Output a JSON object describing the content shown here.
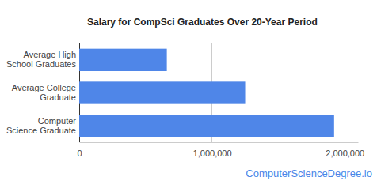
{
  "chart_data": {
    "type": "bar",
    "orientation": "horizontal",
    "title": "Salary for CompSci Graduates Over 20-Year Period",
    "categories": [
      "Average High School Graduates",
      "Average College Graduate",
      "Computer Science Graduate"
    ],
    "values": [
      660000,
      1250000,
      1920000
    ],
    "color": "#4f86e8",
    "xlim": [
      0,
      2100000
    ],
    "xticks": [
      0,
      {
        "value": 1000000,
        "label": "1,000,000"
      },
      {
        "value": 2000000,
        "label": "2,000,000"
      }
    ],
    "grid": true,
    "annotations": [
      "ComputerScienceDegree.io"
    ]
  }
}
